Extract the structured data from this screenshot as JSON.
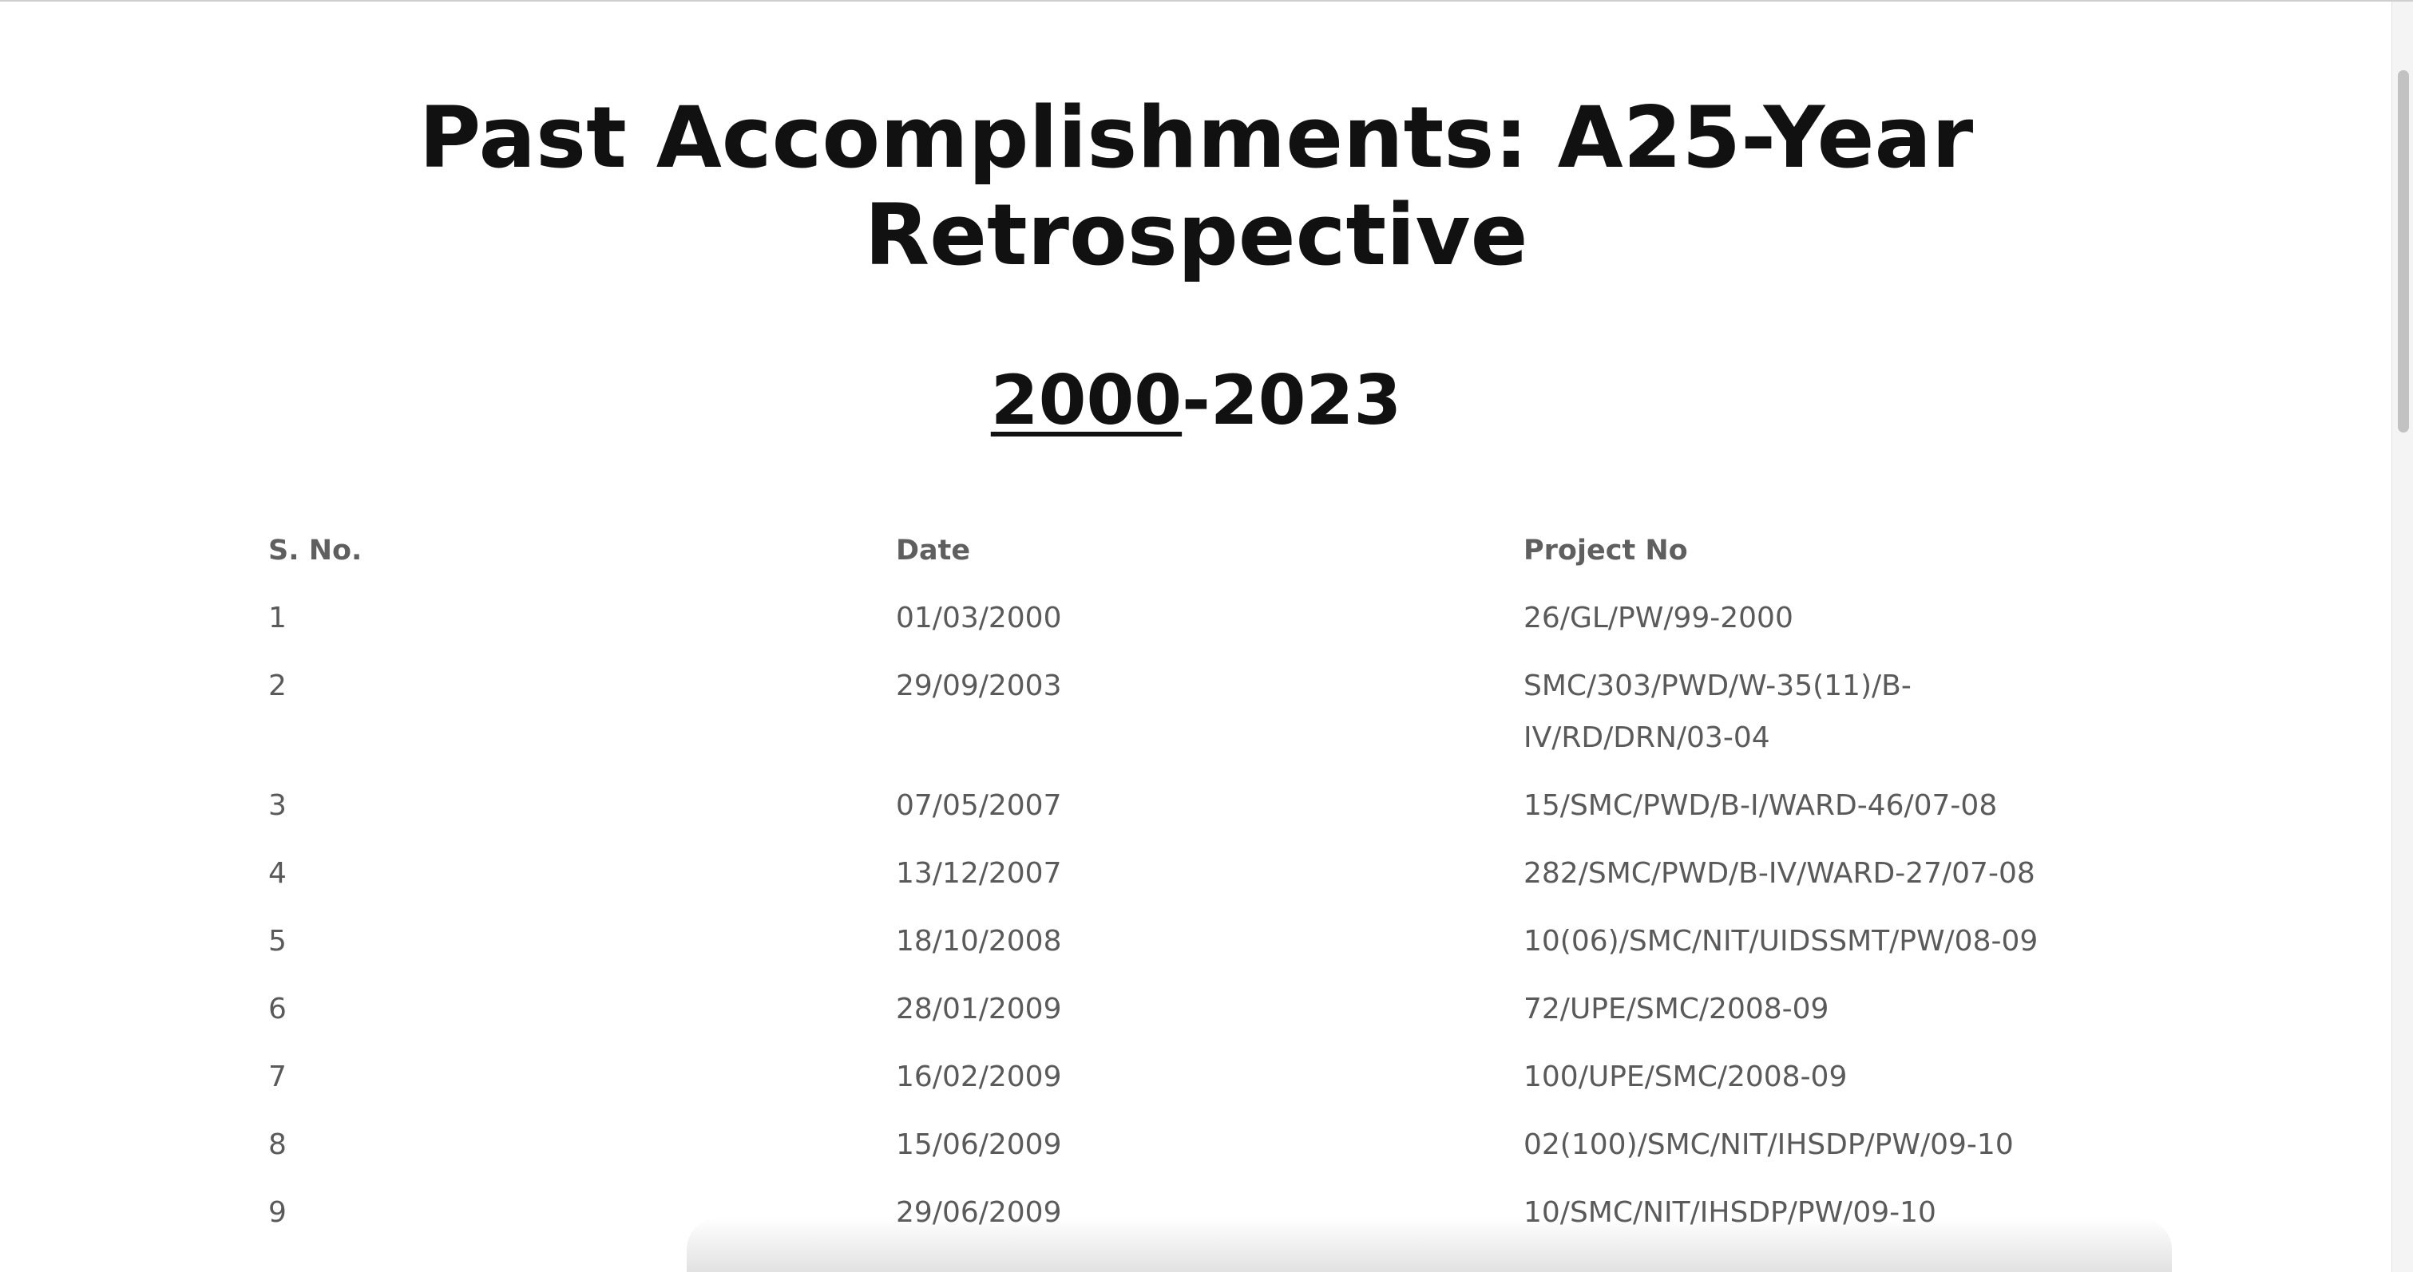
{
  "document": {
    "title": "Past Accomplishments: A25-Year Retrospective",
    "subtitle_start": "2000",
    "subtitle_sep": "-",
    "subtitle_end": "2023"
  },
  "table": {
    "headers": [
      "S. No.",
      "Date",
      "Project No"
    ],
    "rows": [
      [
        "1",
        "01/03/2000",
        "26/GL/PW/99-2000"
      ],
      [
        "2",
        "29/09/2003",
        "SMC/303/PWD/W-35(11)/B-IV/RD/DRN/03-04"
      ],
      [
        "3",
        "07/05/2007",
        "15/SMC/PWD/B-I/WARD-46/07-08"
      ],
      [
        "4",
        "13/12/2007",
        "282/SMC/PWD/B-IV/WARD-27/07-08"
      ],
      [
        "5",
        "18/10/2008",
        "10(06)/SMC/NIT/UIDSSMT/PW/08-09"
      ],
      [
        "6",
        "28/01/2009",
        "72/UPE/SMC/2008-09"
      ],
      [
        "7",
        "16/02/2009",
        "100/UPE/SMC/2008-09"
      ],
      [
        "8",
        "15/06/2009",
        "02(100)/SMC/NIT/IHSDP/PW/09-10"
      ],
      [
        "9",
        "29/06/2009",
        "10/SMC/NIT/IHSDP/PW/09-10"
      ]
    ]
  },
  "colors": {
    "heading": "#111111",
    "table_text": "#5a5a5a",
    "background": "#ffffff"
  }
}
